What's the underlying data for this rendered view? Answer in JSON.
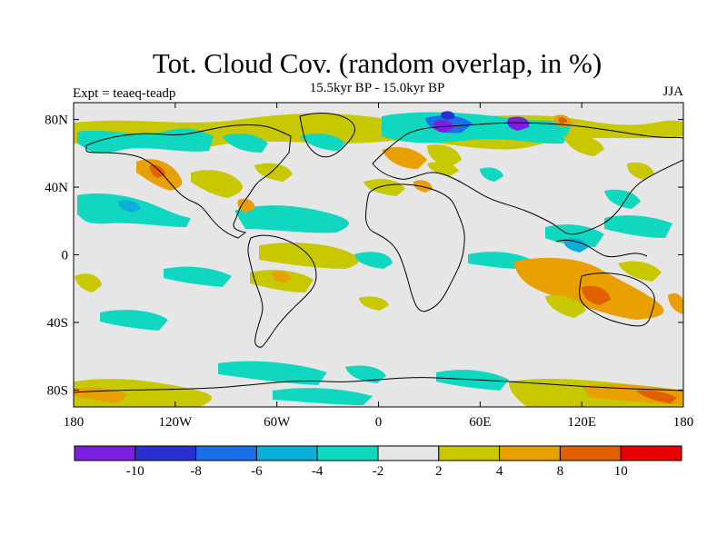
{
  "title": "Tot. Cloud Cov. (random overlap, in %)",
  "subtitle": "15.5kyr BP - 15.0kyr BP",
  "experiment": "Expt = teaeq-teadp",
  "season": "JJA",
  "map": {
    "background_color": "#e6e6e6",
    "x_ticks": [
      {
        "value": -180,
        "label": "180"
      },
      {
        "value": -120,
        "label": "120W"
      },
      {
        "value": -60,
        "label": "60W"
      },
      {
        "value": 0,
        "label": "0"
      },
      {
        "value": 60,
        "label": "60E"
      },
      {
        "value": 120,
        "label": "120E"
      },
      {
        "value": 180,
        "label": "180"
      }
    ],
    "y_ticks": [
      {
        "value": 80,
        "label": "80N"
      },
      {
        "value": 40,
        "label": "40N"
      },
      {
        "value": 0,
        "label": "0"
      },
      {
        "value": -40,
        "label": "40S"
      },
      {
        "value": -80,
        "label": "80S"
      }
    ],
    "lon_range": [
      -180,
      180
    ],
    "lat_range": [
      -90,
      90
    ]
  },
  "colorbar": {
    "colors": [
      "#7a1fe0",
      "#2a2fd0",
      "#1a6fe8",
      "#0aaed8",
      "#10d8c0",
      "#e6e6e6",
      "#c8c800",
      "#e8a000",
      "#e06000",
      "#e80000"
    ],
    "labels": [
      "-10",
      "-8",
      "-6",
      "-4",
      "-2",
      "2",
      "4",
      "8",
      "10"
    ]
  }
}
